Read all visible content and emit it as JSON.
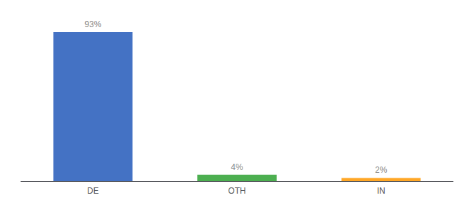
{
  "chart_data": {
    "type": "bar",
    "categories": [
      "DE",
      "OTH",
      "IN"
    ],
    "values": [
      93,
      4,
      2
    ],
    "value_labels": [
      "93%",
      "4%",
      "2%"
    ],
    "colors": [
      "#4472c4",
      "#4CAF50",
      "#FFA726"
    ],
    "ylim": [
      0,
      100
    ],
    "data_labels": true,
    "tick_labels": "x",
    "grid": false
  }
}
